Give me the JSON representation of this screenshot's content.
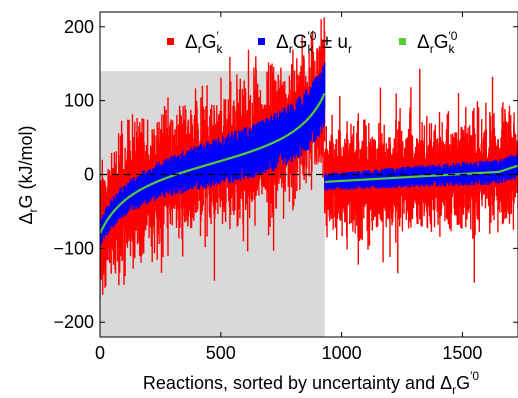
{
  "chart_data": {
    "type": "line",
    "xlabel": "Reactions, sorted by uncertainty and ΔrG′0",
    "ylabel": "ΔrG (kJ/mol)",
    "xlim": [
      0,
      1730
    ],
    "ylim": [
      -220,
      220
    ],
    "x_ticks": [
      0,
      500,
      1000,
      1500
    ],
    "y_ticks": [
      -200,
      -100,
      0,
      100,
      200
    ],
    "x_tick_labels": [
      "0",
      "500",
      "1000",
      "1500"
    ],
    "y_tick_labels": [
      "−200",
      "−100",
      "0",
      "100",
      "200"
    ],
    "shaded_region": {
      "x": [
        0,
        930
      ],
      "color": "#d9d9d9"
    },
    "zero_line": {
      "y": 0,
      "style": "dashed"
    },
    "legend_placement": "top",
    "colors": {
      "red": "#ff0000",
      "blue": "#0000ff",
      "green": "#55cc33"
    },
    "segments": [
      {
        "x_range": [
          0,
          930
        ],
        "center_start": -80,
        "center_end": 110,
        "blue_width_start": 20,
        "blue_width_end": 45,
        "red_width": 55
      },
      {
        "x_range": [
          930,
          1730
        ],
        "center_start": -10,
        "center_end": 5,
        "center_tail": 12,
        "blue_width_start": 12,
        "blue_width_end": 18,
        "red_width": 45
      }
    ],
    "series": [
      {
        "name": "ΔrGk′",
        "color": "#ff0000"
      },
      {
        "name": "ΔrGk′0 ± ur",
        "color": "#0000ff"
      },
      {
        "name": "ΔrGk′0",
        "color": "#55cc33"
      }
    ]
  }
}
